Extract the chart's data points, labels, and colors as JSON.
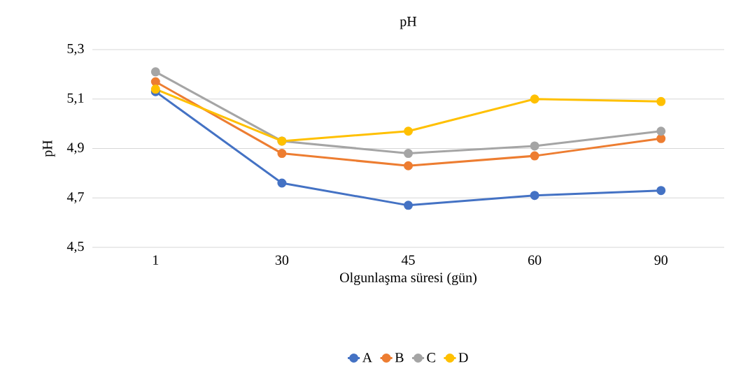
{
  "chart_data": {
    "type": "line",
    "title": "pH",
    "xlabel": "Olgunlaşma süresi (gün)",
    "ylabel": "pH",
    "categories": [
      "1",
      "30",
      "45",
      "60",
      "90"
    ],
    "series": [
      {
        "name": "A",
        "color": "#4472c4",
        "values": [
          5.13,
          4.76,
          4.67,
          4.71,
          4.73
        ]
      },
      {
        "name": "B",
        "color": "#ed7d31",
        "values": [
          5.17,
          4.88,
          4.83,
          4.87,
          4.94
        ]
      },
      {
        "name": "C",
        "color": "#a5a5a5",
        "values": [
          5.21,
          4.93,
          4.88,
          4.91,
          4.97
        ]
      },
      {
        "name": "D",
        "color": "#ffc000",
        "values": [
          5.14,
          4.93,
          4.97,
          5.1,
          5.09
        ]
      }
    ],
    "ylim": [
      4.5,
      5.3
    ],
    "yticks": [
      {
        "value": 4.5,
        "label": "4,5"
      },
      {
        "value": 4.7,
        "label": "4,7"
      },
      {
        "value": 4.9,
        "label": "4,9"
      },
      {
        "value": 5.1,
        "label": "5,1"
      },
      {
        "value": 5.3,
        "label": "5,3"
      }
    ],
    "grid": "y",
    "legend": "bottom",
    "marker": "circle",
    "line_style": "solid"
  }
}
